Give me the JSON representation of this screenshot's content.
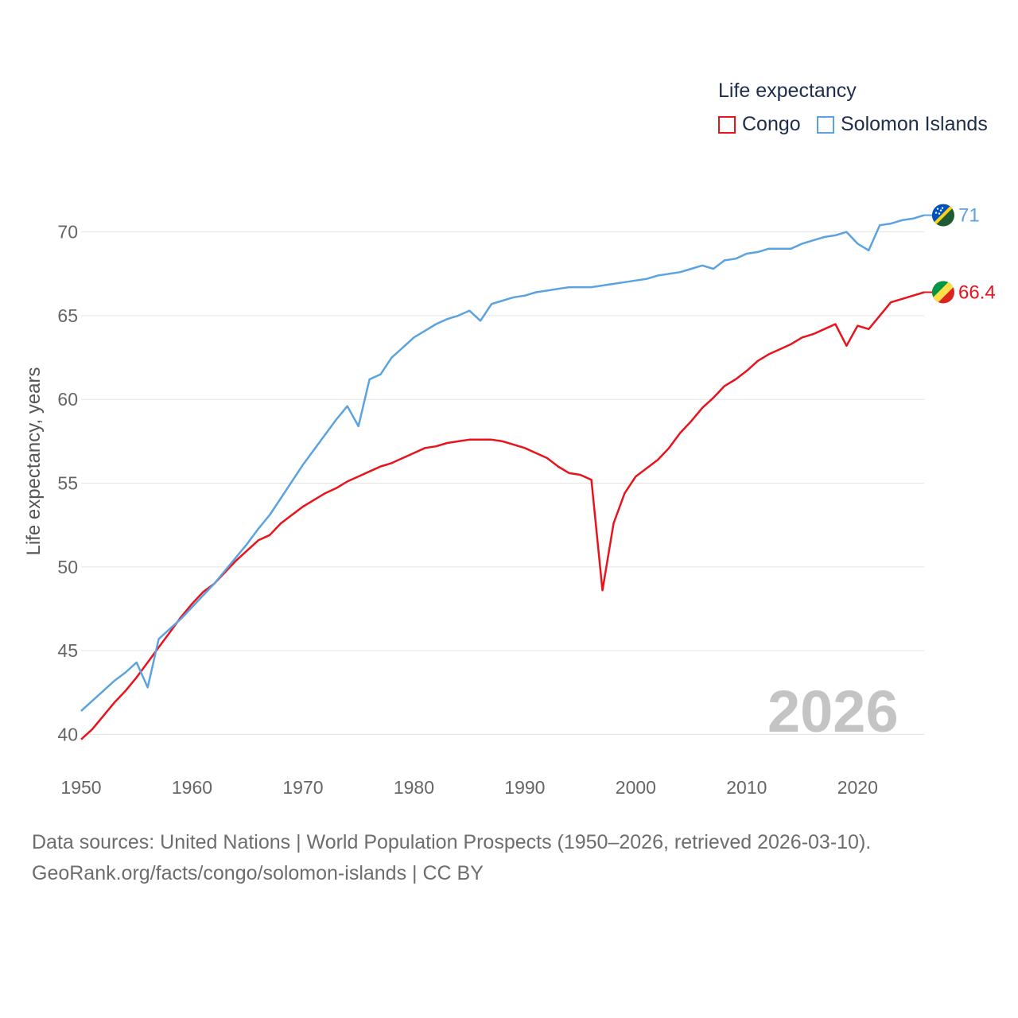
{
  "legend": {
    "title": "Life expectancy",
    "items": [
      {
        "label": "Congo",
        "color": "#e8131b"
      },
      {
        "label": "Solomon Islands",
        "color": "#5ba3e0"
      }
    ]
  },
  "year_label": "2026",
  "footer": {
    "line1": "Data sources: United Nations | World Population Prospects (1950–2026, retrieved 2026-03-10).",
    "line2": "GeoRank.org/facts/congo/solomon-islands | CC BY"
  },
  "chart_data": {
    "type": "line",
    "ylabel": "Life expectancy, years",
    "xlabel": "",
    "xlim": [
      1950,
      2026
    ],
    "ylim": [
      38.5,
      72.5
    ],
    "xticks": [
      1950,
      1960,
      1970,
      1980,
      1990,
      2000,
      2010,
      2020
    ],
    "yticks": [
      40,
      45,
      50,
      55,
      60,
      65,
      70
    ],
    "x": [
      1950,
      1951,
      1952,
      1953,
      1954,
      1955,
      1956,
      1957,
      1958,
      1959,
      1960,
      1961,
      1962,
      1963,
      1964,
      1965,
      1966,
      1967,
      1968,
      1969,
      1970,
      1971,
      1972,
      1973,
      1974,
      1975,
      1976,
      1977,
      1978,
      1979,
      1980,
      1981,
      1982,
      1983,
      1984,
      1985,
      1986,
      1987,
      1988,
      1989,
      1990,
      1991,
      1992,
      1993,
      1994,
      1995,
      1996,
      1997,
      1998,
      1999,
      2000,
      2001,
      2002,
      2003,
      2004,
      2005,
      2006,
      2007,
      2008,
      2009,
      2010,
      2011,
      2012,
      2013,
      2014,
      2015,
      2016,
      2017,
      2018,
      2019,
      2020,
      2021,
      2022,
      2023,
      2024,
      2025,
      2026
    ],
    "series": [
      {
        "name": "Congo",
        "color": "#e8131b",
        "end_label": "66.4",
        "values": [
          39.7,
          40.3,
          41.1,
          41.9,
          42.6,
          43.4,
          44.3,
          45.2,
          46.1,
          47.0,
          47.8,
          48.5,
          49.0,
          49.7,
          50.4,
          51.0,
          51.6,
          51.9,
          52.6,
          53.1,
          53.6,
          54.0,
          54.4,
          54.7,
          55.1,
          55.4,
          55.7,
          56.0,
          56.2,
          56.5,
          56.8,
          57.1,
          57.2,
          57.4,
          57.5,
          57.6,
          57.6,
          57.6,
          57.5,
          57.3,
          57.1,
          56.8,
          56.5,
          56.0,
          55.6,
          55.5,
          55.2,
          48.6,
          52.6,
          54.4,
          55.4,
          55.9,
          56.4,
          57.1,
          58.0,
          58.7,
          59.5,
          60.1,
          60.8,
          61.2,
          61.7,
          62.3,
          62.7,
          63.0,
          63.3,
          63.7,
          63.9,
          64.2,
          64.5,
          63.2,
          64.4,
          64.2,
          65.0,
          65.8,
          66.0,
          66.2,
          66.4
        ]
      },
      {
        "name": "Solomon Islands",
        "color": "#5ba3e0",
        "end_label": "71",
        "values": [
          41.4,
          42.0,
          42.6,
          43.2,
          43.7,
          44.3,
          42.8,
          45.7,
          46.3,
          46.9,
          47.6,
          48.3,
          49.0,
          49.8,
          50.6,
          51.4,
          52.3,
          53.1,
          54.1,
          55.1,
          56.1,
          57.0,
          57.9,
          58.8,
          59.6,
          58.4,
          61.2,
          61.5,
          62.5,
          63.1,
          63.7,
          64.1,
          64.5,
          64.8,
          65.0,
          65.3,
          64.7,
          65.7,
          65.9,
          66.1,
          66.2,
          66.4,
          66.5,
          66.6,
          66.7,
          66.7,
          66.7,
          66.8,
          66.9,
          67.0,
          67.1,
          67.2,
          67.4,
          67.5,
          67.6,
          67.8,
          68.0,
          67.8,
          68.3,
          68.4,
          68.7,
          68.8,
          69.0,
          69.0,
          69.0,
          69.3,
          69.5,
          69.7,
          69.8,
          70.0,
          69.3,
          68.9,
          70.4,
          70.5,
          70.7,
          70.8,
          71.0
        ]
      }
    ]
  }
}
